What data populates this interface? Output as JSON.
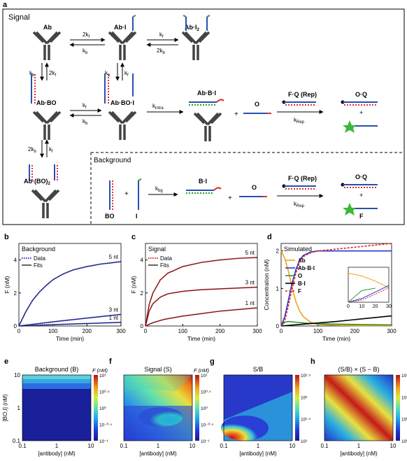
{
  "panel_a": {
    "letter": "a",
    "signal_label": "Signal",
    "background_label": "Background",
    "species": {
      "ab": "Ab",
      "ab_i": "Ab·I",
      "ab_i2": "Ab·I",
      "ab_i2_sub": "2",
      "ab_bo": "Ab·BO",
      "ab_bo_i": "Ab·BO·I",
      "ab_b_i": "Ab·B·I",
      "ab_bo2": "Ab·(BO)",
      "ab_bo2_sub": "2",
      "o": "O",
      "fq_rep": "F·Q (Rep)",
      "oq": "O·Q",
      "f": "F",
      "b_i": "B·I",
      "bo": "BO",
      "i": "I",
      "plus": "+"
    },
    "rates": {
      "k2f": "2k",
      "kb": "k",
      "kf": "k",
      "k2b": "2k",
      "sub_f": "f",
      "sub_b": "b",
      "sub_intra": "intra",
      "sub_rep": "Rep",
      "sub_bg": "bg",
      "k": "k"
    }
  },
  "chart_data": [
    {
      "type": "line",
      "panel": "b",
      "title": "Background",
      "xlabel": "Time (min)",
      "ylabel": "F (nM)",
      "xlim": [
        0,
        300
      ],
      "ylim": [
        0,
        5
      ],
      "xticks": [
        "0",
        "100",
        "200",
        "300"
      ],
      "yticks": [
        "0",
        "2",
        "4"
      ],
      "legend": [
        "Data",
        "Fits"
      ],
      "series": [
        {
          "name": "5 nt",
          "x": [
            0,
            20,
            40,
            60,
            80,
            100,
            130,
            160,
            200,
            240,
            270,
            300
          ],
          "y": [
            0,
            0.85,
            1.55,
            2.05,
            2.45,
            2.8,
            3.15,
            3.4,
            3.6,
            3.75,
            3.82,
            3.9
          ]
        },
        {
          "name": "3 nt",
          "x": [
            0,
            100,
            200,
            300
          ],
          "y": [
            0,
            0.25,
            0.48,
            0.7
          ]
        },
        {
          "name": "1 nt",
          "x": [
            0,
            100,
            200,
            300
          ],
          "y": [
            0,
            0.08,
            0.15,
            0.22
          ]
        }
      ],
      "colors": {
        "data": "#2a35d6",
        "fit": "#000000"
      }
    },
    {
      "type": "line",
      "panel": "c",
      "title": "Signal",
      "xlabel": "Time (min)",
      "ylabel": "F (nM)",
      "xlim": [
        0,
        300
      ],
      "ylim": [
        0,
        5
      ],
      "xticks": [
        "0",
        "100",
        "200",
        "300"
      ],
      "yticks": [
        "0",
        "2",
        "4"
      ],
      "legend": [
        "Data",
        "Fits"
      ],
      "series": [
        {
          "name": "5 nt",
          "x": [
            0,
            10,
            20,
            40,
            60,
            100,
            150,
            200,
            250,
            300
          ],
          "y": [
            0,
            1.3,
            2.0,
            2.8,
            3.2,
            3.6,
            3.85,
            4.0,
            4.1,
            4.15
          ]
        },
        {
          "name": "3 nt",
          "x": [
            0,
            10,
            20,
            40,
            60,
            100,
            150,
            200,
            250,
            300
          ],
          "y": [
            0,
            0.9,
            1.35,
            1.75,
            1.95,
            2.1,
            2.2,
            2.25,
            2.3,
            2.35
          ]
        },
        {
          "name": "1 nt",
          "x": [
            0,
            20,
            50,
            100,
            150,
            200,
            250,
            300
          ],
          "y": [
            0,
            0.2,
            0.4,
            0.6,
            0.75,
            0.9,
            1.0,
            1.1
          ]
        }
      ],
      "colors": {
        "data": "#e02020",
        "fit": "#000000"
      }
    },
    {
      "type": "line",
      "panel": "d",
      "title": "Simulated",
      "xlabel": "Time (min)",
      "ylabel": "Concentration (nM)",
      "xlim": [
        0,
        300
      ],
      "ylim": [
        0,
        2.2
      ],
      "xticks": [
        "0",
        "100",
        "200",
        "300"
      ],
      "yticks": [
        "0",
        "1",
        "2"
      ],
      "series": [
        {
          "name": "Ab",
          "color": "#f0a020",
          "x": [
            0,
            10,
            20,
            30,
            40,
            50,
            60,
            80,
            100,
            150,
            200,
            300
          ],
          "y": [
            2,
            1.8,
            1.45,
            1.0,
            0.65,
            0.4,
            0.25,
            0.1,
            0.04,
            0.02,
            0.01,
            0.01
          ]
        },
        {
          "name": "Ab·B·I",
          "color": "#2a35d6",
          "x": [
            0,
            10,
            20,
            30,
            40,
            50,
            60,
            80,
            100,
            150,
            200,
            300
          ],
          "y": [
            0,
            0.25,
            0.7,
            1.15,
            1.5,
            1.75,
            1.88,
            1.97,
            2.0,
            2.0,
            2.0,
            2.0
          ]
        },
        {
          "name": "O",
          "color": "#2a9a2a",
          "x": [
            0,
            10,
            20,
            40,
            60,
            100,
            150,
            200,
            300
          ],
          "y": [
            0,
            0.1,
            0.12,
            0.1,
            0.08,
            0.06,
            0.05,
            0.04,
            0.03
          ]
        },
        {
          "name": "B·I",
          "color": "#000000",
          "x": [
            0,
            50,
            100,
            150,
            200,
            250,
            300
          ],
          "y": [
            0,
            0.04,
            0.08,
            0.12,
            0.17,
            0.22,
            0.27
          ]
        },
        {
          "name": "F",
          "color": "#e02020",
          "x": [
            0,
            10,
            20,
            30,
            40,
            50,
            60,
            80,
            100,
            150,
            200,
            250,
            300
          ],
          "y": [
            0,
            0.15,
            0.55,
            1.0,
            1.4,
            1.7,
            1.85,
            1.95,
            2.0,
            2.05,
            2.1,
            2.15,
            2.2
          ]
        }
      ],
      "inset": {
        "xticks": [
          "0",
          "10",
          "20",
          "30"
        ],
        "xlim": [
          0,
          30
        ],
        "ylim": [
          0,
          1.2
        ]
      }
    },
    {
      "type": "heatmap",
      "panel": "e",
      "title": "Background (B)",
      "xlabel": "[antibody] (nM)",
      "ylabel": "[BO,I] (nM)",
      "xticks": [
        "0.1",
        "1",
        "10"
      ],
      "yticks": [
        "10",
        "1",
        "0.1"
      ],
      "colorbar_label": "F (nM)",
      "colorbar_ticks": [
        "10¹",
        "10⁰·⁵",
        "10⁰",
        "10⁻⁰·⁵",
        "10⁻¹"
      ]
    },
    {
      "type": "heatmap",
      "panel": "f",
      "title": "Signal (S)",
      "xlabel": "[antibody] (nM)",
      "xticks": [
        "0.1",
        "1",
        "10"
      ],
      "colorbar_label": "F (nM)",
      "colorbar_ticks": [
        "10¹",
        "10⁰·⁵",
        "10⁰",
        "10⁻⁰·⁵",
        "10⁻¹"
      ]
    },
    {
      "type": "heatmap",
      "panel": "g",
      "title": "S/B",
      "xlabel": "[antibody] (nM)",
      "xticks": [
        "0.1",
        "1",
        "10"
      ],
      "colorbar_ticks": [
        "10²·⁵",
        "10²",
        "10¹·⁵",
        "10¹"
      ]
    },
    {
      "type": "heatmap",
      "panel": "h",
      "title": "(S/B) × (S − B)",
      "xlabel": "[antibody] (nM)",
      "xticks": [
        "0.1",
        "1",
        "10"
      ],
      "colorbar_ticks": [
        "10¹·⁵",
        "10¹",
        "10⁰·⁵",
        "10⁰"
      ]
    }
  ],
  "panel_letters": {
    "b": "b",
    "c": "c",
    "d": "d",
    "e": "e",
    "f": "f",
    "g": "g",
    "h": "h"
  },
  "labels_b": {
    "5nt": "5 nt",
    "3nt": "3 nt",
    "1nt": "1 nt"
  },
  "labels_c": {
    "5nt": "5 nt",
    "3nt": "3 nt",
    "1nt": "1 nt"
  }
}
